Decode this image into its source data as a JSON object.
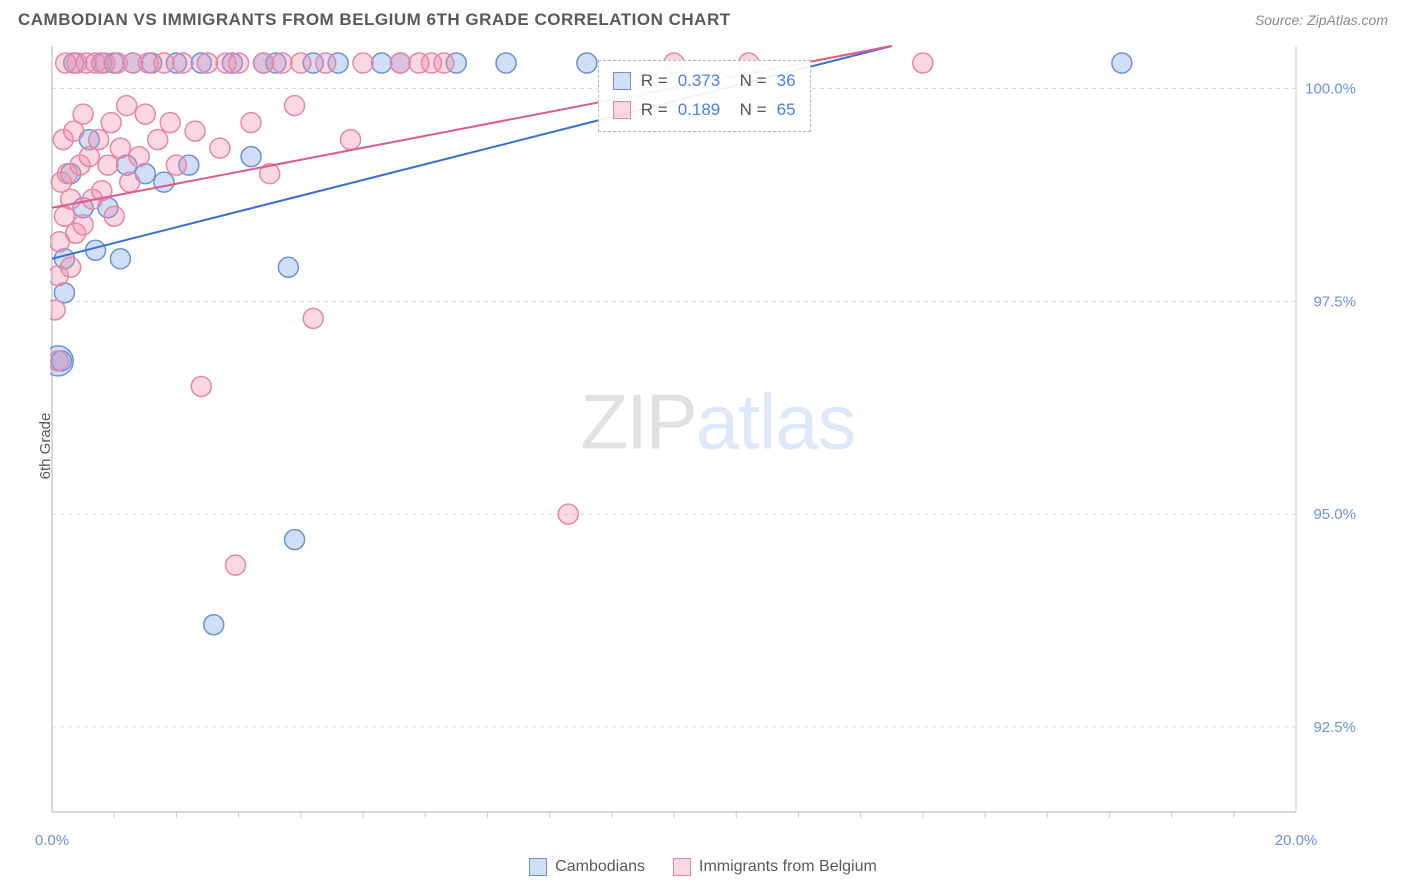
{
  "header": {
    "title": "CAMBODIAN VS IMMIGRANTS FROM BELGIUM 6TH GRADE CORRELATION CHART",
    "source": "Source: ZipAtlas.com"
  },
  "watermark": {
    "part1": "ZIP",
    "part2": "atlas"
  },
  "chart": {
    "type": "scatter",
    "y_axis_label": "6th Grade",
    "xlim": [
      0.0,
      20.0
    ],
    "ylim": [
      91.5,
      100.5
    ],
    "x_ticks": [
      {
        "value": 0.0,
        "label": "0.0%"
      },
      {
        "value": 20.0,
        "label": "20.0%"
      }
    ],
    "x_minor_ticks": [
      1,
      2,
      3,
      4,
      5,
      6,
      7,
      8,
      9,
      10,
      11,
      12,
      13,
      14,
      15,
      16,
      17,
      18,
      19
    ],
    "y_ticks": [
      {
        "value": 92.5,
        "label": "92.5%"
      },
      {
        "value": 95.0,
        "label": "95.0%"
      },
      {
        "value": 97.5,
        "label": "97.5%"
      },
      {
        "value": 100.0,
        "label": "100.0%"
      }
    ],
    "grid_color": "#d8d8d8",
    "axis_color": "#cccccc",
    "background_color": "#ffffff",
    "y_tick_label_color": "#6a93db",
    "x_tick_label_color": "#6a93db",
    "marker_radius": 10,
    "marker_stroke_width": 1.5,
    "line_width": 2,
    "series": [
      {
        "name": "Cambodians",
        "color_fill": "rgba(120,160,230,0.35)",
        "color_stroke": "#6a93db",
        "line_color": "#3a6fd8",
        "R": "0.373",
        "N": "36",
        "trendline": {
          "x1": 0.0,
          "y1": 98.0,
          "x2": 13.5,
          "y2": 100.5
        },
        "points": [
          {
            "x": 0.1,
            "y": 96.8,
            "r": 15
          },
          {
            "x": 0.15,
            "y": 96.8
          },
          {
            "x": 0.2,
            "y": 97.6
          },
          {
            "x": 0.2,
            "y": 98.0
          },
          {
            "x": 0.3,
            "y": 99.0
          },
          {
            "x": 0.35,
            "y": 100.3
          },
          {
            "x": 0.5,
            "y": 98.6
          },
          {
            "x": 0.6,
            "y": 99.4
          },
          {
            "x": 0.7,
            "y": 98.1
          },
          {
            "x": 0.8,
            "y": 100.3
          },
          {
            "x": 0.9,
            "y": 98.6
          },
          {
            "x": 1.0,
            "y": 100.3
          },
          {
            "x": 1.1,
            "y": 98.0
          },
          {
            "x": 1.2,
            "y": 99.1
          },
          {
            "x": 1.3,
            "y": 100.3
          },
          {
            "x": 1.5,
            "y": 99.0
          },
          {
            "x": 1.6,
            "y": 100.3
          },
          {
            "x": 1.8,
            "y": 98.9
          },
          {
            "x": 2.0,
            "y": 100.3
          },
          {
            "x": 2.2,
            "y": 99.1
          },
          {
            "x": 2.4,
            "y": 100.3
          },
          {
            "x": 2.6,
            "y": 93.7
          },
          {
            "x": 2.9,
            "y": 100.3
          },
          {
            "x": 3.2,
            "y": 99.2
          },
          {
            "x": 3.4,
            "y": 100.3
          },
          {
            "x": 3.6,
            "y": 100.3
          },
          {
            "x": 3.8,
            "y": 97.9
          },
          {
            "x": 3.9,
            "y": 94.7
          },
          {
            "x": 4.2,
            "y": 100.3
          },
          {
            "x": 4.6,
            "y": 100.3
          },
          {
            "x": 5.3,
            "y": 100.3
          },
          {
            "x": 5.6,
            "y": 100.3
          },
          {
            "x": 6.5,
            "y": 100.3
          },
          {
            "x": 7.3,
            "y": 100.3
          },
          {
            "x": 8.6,
            "y": 100.3
          },
          {
            "x": 17.2,
            "y": 100.3
          }
        ]
      },
      {
        "name": "Immigrants from Belgium",
        "color_fill": "rgba(240,140,170,0.35)",
        "color_stroke": "#e687a8",
        "line_color": "#e05a88",
        "R": "0.189",
        "N": "65",
        "trendline": {
          "x1": 0.0,
          "y1": 98.6,
          "x2": 13.5,
          "y2": 100.5
        },
        "points": [
          {
            "x": 0.05,
            "y": 97.4
          },
          {
            "x": 0.1,
            "y": 97.8
          },
          {
            "x": 0.1,
            "y": 96.8
          },
          {
            "x": 0.12,
            "y": 98.2
          },
          {
            "x": 0.15,
            "y": 98.9
          },
          {
            "x": 0.18,
            "y": 99.4
          },
          {
            "x": 0.2,
            "y": 98.5
          },
          {
            "x": 0.22,
            "y": 100.3
          },
          {
            "x": 0.25,
            "y": 99.0
          },
          {
            "x": 0.3,
            "y": 98.7
          },
          {
            "x": 0.3,
            "y": 97.9
          },
          {
            "x": 0.35,
            "y": 99.5
          },
          {
            "x": 0.38,
            "y": 98.3
          },
          {
            "x": 0.4,
            "y": 100.3
          },
          {
            "x": 0.45,
            "y": 99.1
          },
          {
            "x": 0.5,
            "y": 99.7
          },
          {
            "x": 0.5,
            "y": 98.4
          },
          {
            "x": 0.55,
            "y": 100.3
          },
          {
            "x": 0.6,
            "y": 99.2
          },
          {
            "x": 0.65,
            "y": 98.7
          },
          {
            "x": 0.7,
            "y": 100.3
          },
          {
            "x": 0.75,
            "y": 99.4
          },
          {
            "x": 0.8,
            "y": 98.8
          },
          {
            "x": 0.85,
            "y": 100.3
          },
          {
            "x": 0.9,
            "y": 99.1
          },
          {
            "x": 0.95,
            "y": 99.6
          },
          {
            "x": 1.0,
            "y": 98.5
          },
          {
            "x": 1.05,
            "y": 100.3
          },
          {
            "x": 1.1,
            "y": 99.3
          },
          {
            "x": 1.2,
            "y": 99.8
          },
          {
            "x": 1.25,
            "y": 98.9
          },
          {
            "x": 1.3,
            "y": 100.3
          },
          {
            "x": 1.4,
            "y": 99.2
          },
          {
            "x": 1.5,
            "y": 99.7
          },
          {
            "x": 1.55,
            "y": 100.3
          },
          {
            "x": 1.7,
            "y": 99.4
          },
          {
            "x": 1.8,
            "y": 100.3
          },
          {
            "x": 1.9,
            "y": 99.6
          },
          {
            "x": 2.0,
            "y": 99.1
          },
          {
            "x": 2.1,
            "y": 100.3
          },
          {
            "x": 2.3,
            "y": 99.5
          },
          {
            "x": 2.4,
            "y": 96.5
          },
          {
            "x": 2.5,
            "y": 100.3
          },
          {
            "x": 2.7,
            "y": 99.3
          },
          {
            "x": 2.8,
            "y": 100.3
          },
          {
            "x": 2.95,
            "y": 94.4
          },
          {
            "x": 3.0,
            "y": 100.3
          },
          {
            "x": 3.2,
            "y": 99.6
          },
          {
            "x": 3.4,
            "y": 100.3
          },
          {
            "x": 3.5,
            "y": 99.0
          },
          {
            "x": 3.7,
            "y": 100.3
          },
          {
            "x": 3.9,
            "y": 99.8
          },
          {
            "x": 4.0,
            "y": 100.3
          },
          {
            "x": 4.2,
            "y": 97.3
          },
          {
            "x": 4.4,
            "y": 100.3
          },
          {
            "x": 4.8,
            "y": 99.4
          },
          {
            "x": 5.0,
            "y": 100.3
          },
          {
            "x": 5.6,
            "y": 100.3
          },
          {
            "x": 5.9,
            "y": 100.3
          },
          {
            "x": 6.1,
            "y": 100.3
          },
          {
            "x": 6.3,
            "y": 100.3
          },
          {
            "x": 8.3,
            "y": 95.0
          },
          {
            "x": 10.0,
            "y": 100.3
          },
          {
            "x": 11.2,
            "y": 100.3
          },
          {
            "x": 14.0,
            "y": 100.3
          }
        ]
      }
    ],
    "stats_box": {
      "left_pct": 41,
      "top_pct": 2
    },
    "legend": {
      "items": [
        {
          "label": "Cambodians",
          "fill": "rgba(120,160,230,0.35)",
          "stroke": "#6a93db"
        },
        {
          "label": "Immigrants from Belgium",
          "fill": "rgba(240,140,170,0.35)",
          "stroke": "#e687a8"
        }
      ]
    }
  }
}
